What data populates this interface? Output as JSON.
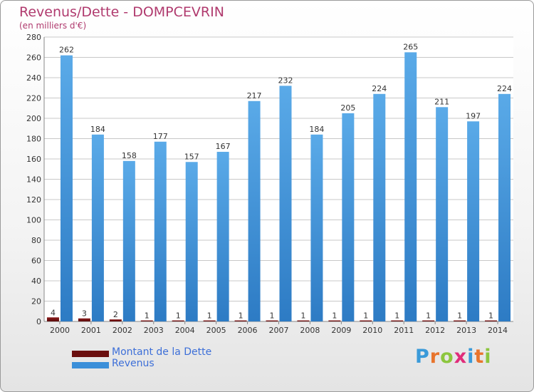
{
  "colors": {
    "dette": "#6b0f0f",
    "revenus": "#3b8fd9",
    "title": "#b03a6e",
    "legend_text": "#3d6fd8",
    "grid": "#c8c8c8"
  },
  "logo": {
    "text": "Proxiti",
    "letter_colors": [
      "#3a9ad9",
      "#e8742c",
      "#8cc63e",
      "#e02d7a",
      "#3a9ad9",
      "#e8742c",
      "#8cc63e"
    ]
  },
  "chart_data": {
    "type": "bar",
    "title": "Revenus/Dette - DOMPCEVRIN",
    "subtitle": "(en milliers d'€)",
    "categories": [
      "2000",
      "2001",
      "2002",
      "2003",
      "2004",
      "2005",
      "2006",
      "2007",
      "2008",
      "2009",
      "2010",
      "2011",
      "2012",
      "2013",
      "2014"
    ],
    "series": [
      {
        "name": "Montant de la Dette",
        "values": [
          4,
          3,
          2,
          1,
          1,
          1,
          1,
          1,
          1,
          1,
          1,
          1,
          1,
          1,
          1
        ]
      },
      {
        "name": "Revenus",
        "values": [
          262,
          184,
          158,
          177,
          157,
          167,
          217,
          232,
          184,
          205,
          224,
          265,
          211,
          197,
          224
        ]
      }
    ],
    "ylim": [
      0,
      280
    ],
    "yticks": [
      0,
      20,
      40,
      60,
      80,
      100,
      120,
      140,
      160,
      180,
      200,
      220,
      240,
      260,
      280
    ],
    "grid": true,
    "legend": "bottom-left"
  }
}
